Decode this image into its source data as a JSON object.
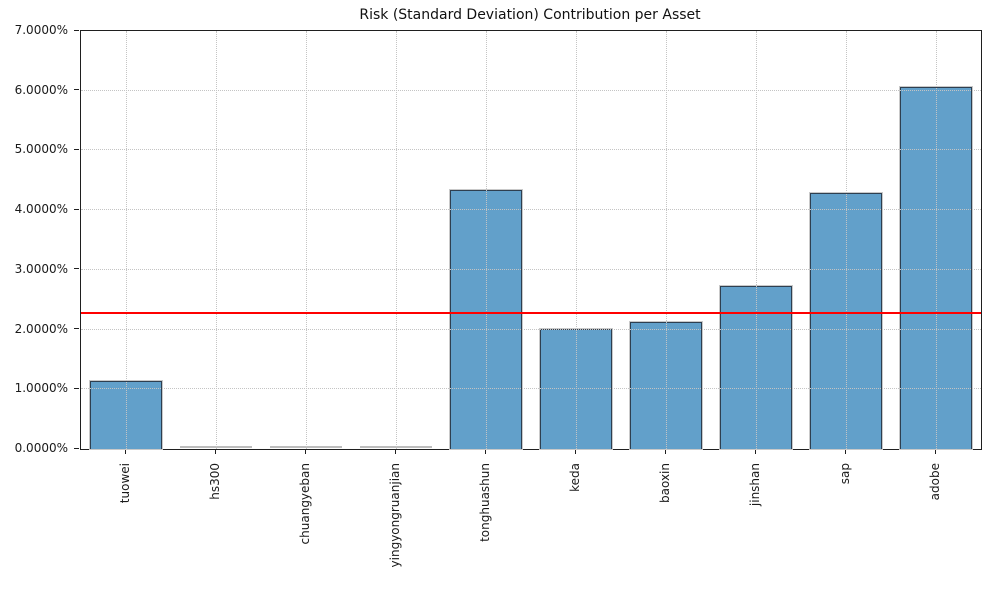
{
  "chart_data": {
    "type": "bar",
    "title": "Risk (Standard Deviation) Contribution per Asset",
    "categories": [
      "tuowei",
      "hs300",
      "chuangyeban",
      "yingyongruanjian",
      "tonghuashun",
      "keda",
      "baoxin",
      "jinshan",
      "sap",
      "adobe"
    ],
    "values": [
      1.14,
      0.0,
      0.0,
      0.0,
      4.33,
      2.01,
      2.12,
      2.73,
      4.29,
      6.06
    ],
    "unit": "percent",
    "xlabel": "",
    "ylabel": "",
    "ylim": [
      0,
      7
    ],
    "yticks": [
      {
        "value": 0,
        "label": "0.0000%"
      },
      {
        "value": 1,
        "label": "1.0000%"
      },
      {
        "value": 2,
        "label": "2.0000%"
      },
      {
        "value": 3,
        "label": "3.0000%"
      },
      {
        "value": 4,
        "label": "4.0000%"
      },
      {
        "value": 5,
        "label": "5.0000%"
      },
      {
        "value": 6,
        "label": "6.0000%"
      },
      {
        "value": 7,
        "label": "7.0000%"
      }
    ],
    "grid": {
      "style": "dotted",
      "horizontal": true,
      "vertical": true,
      "color": "#c4c4c4"
    },
    "reference_line": {
      "value": 2.27,
      "color": "#ff0000"
    },
    "bar_style": {
      "fill": "#62a0ca",
      "edge": "#2e3f50",
      "outline": "#c9c9c9",
      "zero_bar": "#bdbdbd"
    },
    "legend_position": "none"
  }
}
